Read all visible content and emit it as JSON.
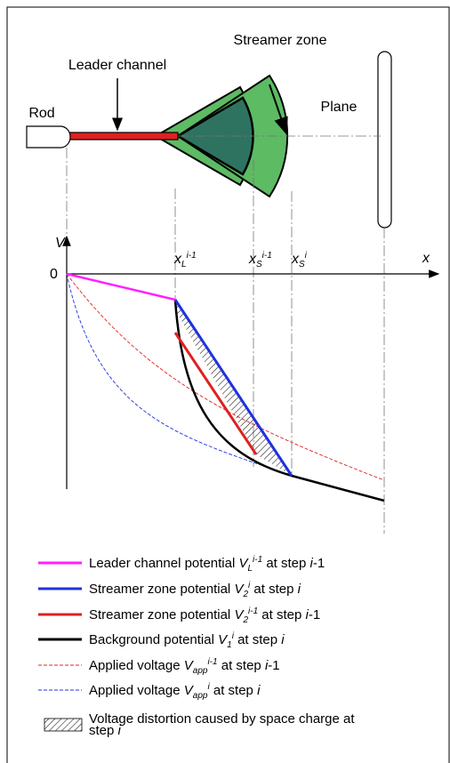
{
  "labels": {
    "streamer_zone": "Streamer zone",
    "leader_channel": "Leader channel",
    "rod": "Rod",
    "plane": "Plane"
  },
  "axes": {
    "v": "V",
    "origin": "0",
    "x": "x",
    "ticks": [
      {
        "sym": "x",
        "sub": "L",
        "sup": "i-1"
      },
      {
        "sym": "x",
        "sub": "S",
        "sup": "i-1"
      },
      {
        "sym": "x",
        "sub": "S",
        "sup": "i"
      }
    ]
  },
  "legend": [
    {
      "parts": [
        "Leader channel potential ",
        "V",
        "L",
        "i-1",
        " at step ",
        "i",
        "-1"
      ]
    },
    {
      "parts": [
        "Streamer zone potential ",
        "V",
        "2",
        "i",
        " at step ",
        "i"
      ]
    },
    {
      "parts": [
        "Streamer zone potential ",
        "V",
        "2",
        "i-1",
        " at step ",
        "i",
        "-1"
      ]
    },
    {
      "parts": [
        "Background potential ",
        "V",
        "1",
        "i",
        " at step ",
        "i"
      ]
    },
    {
      "parts": [
        "Applied voltage ",
        "V",
        "app",
        "i-1",
        " at step ",
        "i",
        "-1"
      ]
    },
    {
      "parts": [
        "Applied voltage ",
        "V",
        "app",
        "i",
        " at step ",
        "i"
      ]
    },
    {
      "parts": [
        "Voltage distortion caused by space charge at",
        "step ",
        "i"
      ]
    }
  ]
}
